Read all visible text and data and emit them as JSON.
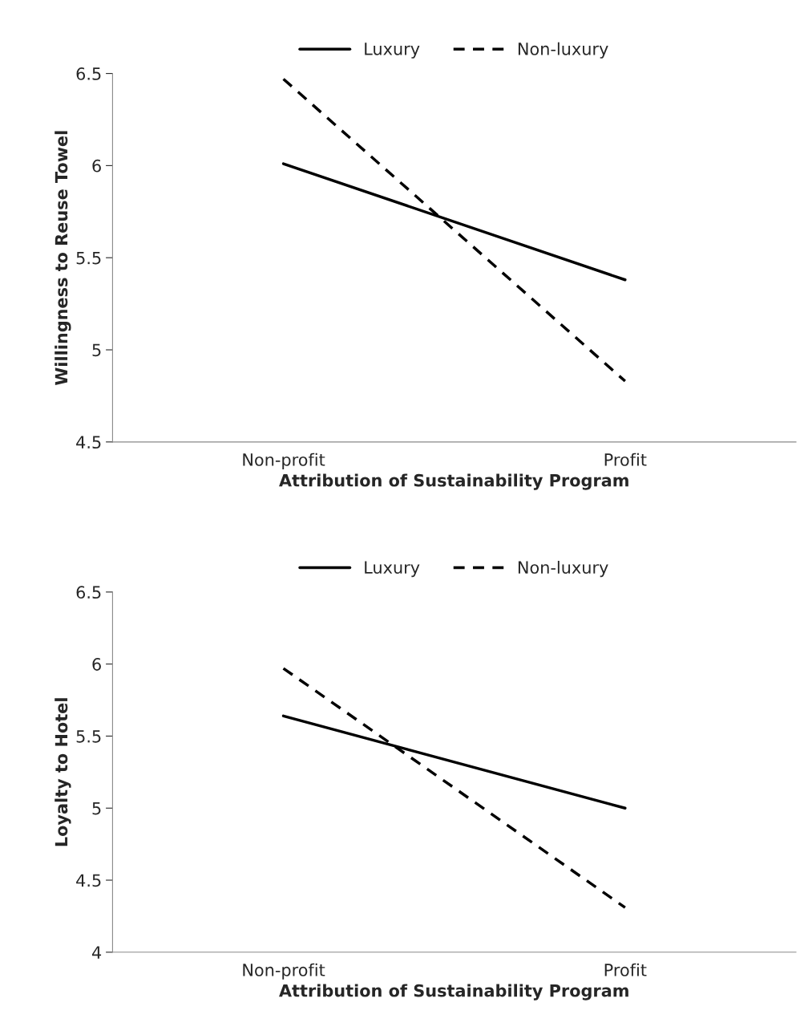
{
  "chart_data": [
    {
      "type": "line",
      "categories": [
        "Non-profit",
        "Profit"
      ],
      "xlabel": "Attribution of Sustainability Program",
      "ylabel": "Willingness to Reuse Towel",
      "ylim": [
        4.5,
        6.5
      ],
      "yticks": [
        4.5,
        5,
        5.5,
        6,
        6.5
      ],
      "grid": false,
      "legend": "top",
      "series": [
        {
          "name": "Luxury",
          "color": "#000000",
          "line_style": "solid",
          "values": [
            6.01,
            5.38
          ]
        },
        {
          "name": "Non-luxury",
          "color": "#000000",
          "line_style": "dashed",
          "values": [
            6.47,
            4.83
          ]
        }
      ]
    },
    {
      "type": "line",
      "categories": [
        "Non-profit",
        "Profit"
      ],
      "xlabel": "Attribution of Sustainability Program",
      "ylabel": "Loyalty to Hotel",
      "ylim": [
        4,
        6.5
      ],
      "yticks": [
        4,
        4.5,
        5,
        5.5,
        6,
        6.5
      ],
      "grid": false,
      "legend": "top",
      "series": [
        {
          "name": "Luxury",
          "color": "#000000",
          "line_style": "solid",
          "values": [
            5.64,
            5.0
          ]
        },
        {
          "name": "Non-luxury",
          "color": "#000000",
          "line_style": "dashed",
          "values": [
            5.97,
            4.31
          ]
        }
      ]
    }
  ]
}
